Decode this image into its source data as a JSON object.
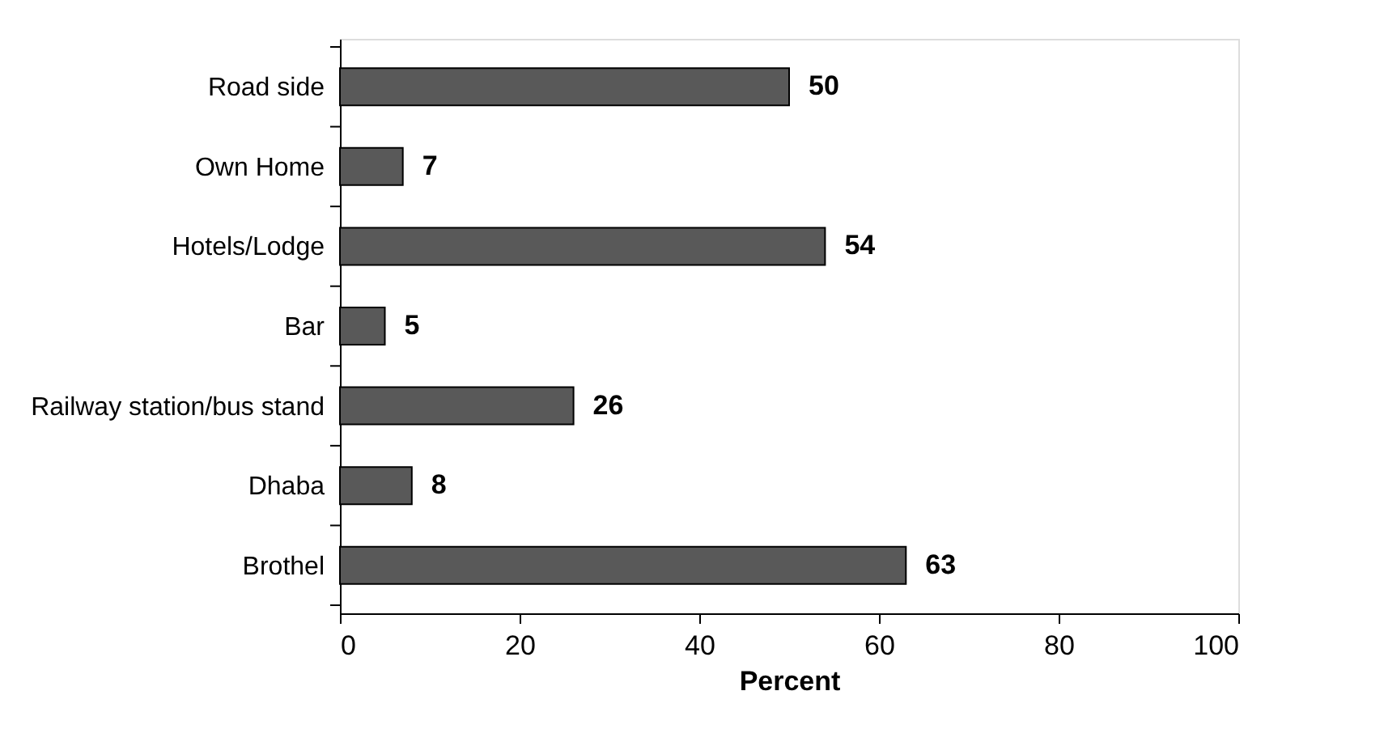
{
  "chart_data": {
    "type": "bar",
    "orientation": "horizontal",
    "xlabel": "Percent",
    "categories": [
      "Road side",
      "Own Home",
      "Hotels/Lodge",
      "Bar",
      "Railway station/bus stand",
      "Dhaba",
      "Brothel"
    ],
    "values": [
      50,
      7,
      54,
      5,
      26,
      8,
      63
    ],
    "color": "#595959",
    "xlim": [
      0,
      100
    ],
    "xticks": [
      0,
      20,
      40,
      60,
      80,
      100
    ],
    "data_labels": true,
    "grid": false
  }
}
